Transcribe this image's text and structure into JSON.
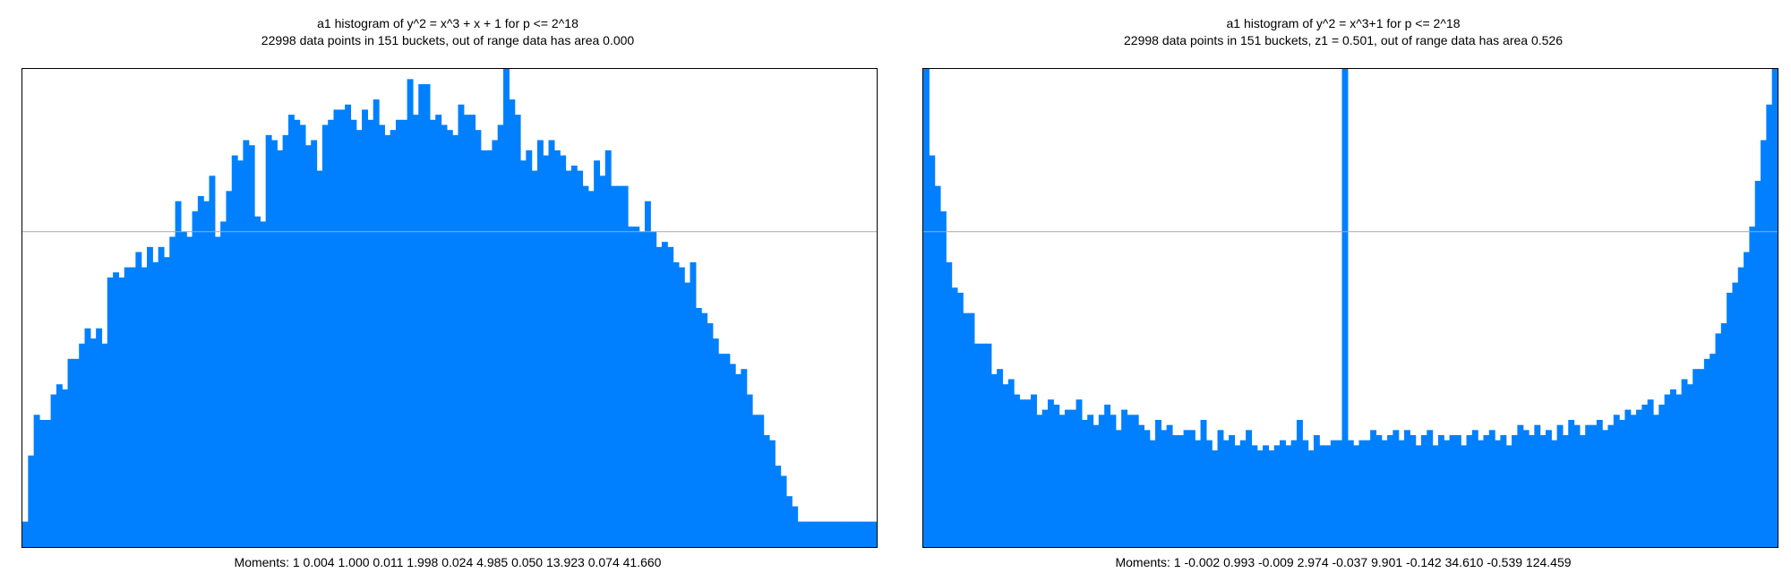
{
  "chart_data": [
    {
      "type": "bar",
      "title": "a1 histogram of y^2 = x^3 + x + 1 for p <= 2^18",
      "subtitle": "22998 data points in 151 buckets, out of range data has area 0.000",
      "moments_label": "Moments: 1   0.004   1.000   0.011   1.998   0.024   4.985   0.050   13.923   0.074   41.660",
      "bucket_count": 151,
      "ylim": [
        0,
        0.94
      ],
      "reference_line": 0.62,
      "grid": false,
      "color": "#0080ff",
      "values": [
        0.05,
        0.18,
        0.26,
        0.25,
        0.25,
        0.3,
        0.32,
        0.31,
        0.37,
        0.37,
        0.4,
        0.43,
        0.41,
        0.43,
        0.4,
        0.53,
        0.54,
        0.53,
        0.55,
        0.55,
        0.58,
        0.55,
        0.59,
        0.56,
        0.59,
        0.57,
        0.61,
        0.68,
        0.62,
        0.61,
        0.66,
        0.69,
        0.68,
        0.73,
        0.61,
        0.64,
        0.7,
        0.77,
        0.76,
        0.8,
        0.79,
        0.65,
        0.64,
        0.81,
        0.8,
        0.78,
        0.81,
        0.85,
        0.84,
        0.83,
        0.79,
        0.8,
        0.74,
        0.83,
        0.84,
        0.86,
        0.86,
        0.87,
        0.84,
        0.82,
        0.86,
        0.84,
        0.88,
        0.83,
        0.81,
        0.82,
        0.84,
        0.84,
        0.92,
        0.85,
        0.91,
        0.91,
        0.84,
        0.85,
        0.83,
        0.82,
        0.81,
        0.87,
        0.85,
        0.85,
        0.82,
        0.78,
        0.78,
        0.8,
        0.83,
        0.94,
        0.88,
        0.85,
        0.76,
        0.78,
        0.74,
        0.8,
        0.77,
        0.8,
        0.78,
        0.77,
        0.74,
        0.75,
        0.74,
        0.71,
        0.7,
        0.76,
        0.73,
        0.78,
        0.71,
        0.71,
        0.71,
        0.63,
        0.63,
        0.62,
        0.68,
        0.62,
        0.59,
        0.6,
        0.59,
        0.56,
        0.55,
        0.52,
        0.56,
        0.47,
        0.46,
        0.44,
        0.41,
        0.38,
        0.38,
        0.36,
        0.34,
        0.35,
        0.3,
        0.26,
        0.26,
        0.22,
        0.21,
        0.16,
        0.14,
        0.1,
        0.08,
        0.05,
        0.05,
        0.05,
        0.05,
        0.05,
        0.05,
        0.05,
        0.05,
        0.05,
        0.05,
        0.05,
        0.05,
        0.05,
        0.05
      ]
    },
    {
      "type": "bar",
      "title": "a1 histogram of y^2 = x^3+1 for p <= 2^18",
      "subtitle": "22998 data points in 151 buckets, z1 = 0.501, out of range data has area 0.526",
      "moments_label": "Moments: 1   -0.002   0.993   -0.009   2.974   -0.037   9.901   -0.142   34.610   -0.539   124.459",
      "bucket_count": 151,
      "ylim": [
        0,
        0.94
      ],
      "reference_line": 0.62,
      "grid": false,
      "color": "#0080ff",
      "values": [
        0.94,
        0.77,
        0.71,
        0.66,
        0.56,
        0.51,
        0.5,
        0.46,
        0.46,
        0.4,
        0.4,
        0.4,
        0.34,
        0.35,
        0.32,
        0.33,
        0.3,
        0.29,
        0.29,
        0.3,
        0.26,
        0.27,
        0.29,
        0.28,
        0.26,
        0.27,
        0.27,
        0.29,
        0.25,
        0.26,
        0.24,
        0.26,
        0.28,
        0.26,
        0.23,
        0.27,
        0.26,
        0.26,
        0.24,
        0.23,
        0.21,
        0.25,
        0.23,
        0.24,
        0.22,
        0.22,
        0.23,
        0.23,
        0.21,
        0.25,
        0.21,
        0.19,
        0.23,
        0.21,
        0.22,
        0.2,
        0.21,
        0.23,
        0.2,
        0.19,
        0.2,
        0.19,
        0.2,
        0.21,
        0.2,
        0.21,
        0.25,
        0.21,
        0.19,
        0.22,
        0.2,
        0.2,
        0.21,
        0.21,
        0.94,
        0.21,
        0.2,
        0.21,
        0.21,
        0.23,
        0.22,
        0.21,
        0.22,
        0.23,
        0.21,
        0.23,
        0.22,
        0.2,
        0.22,
        0.23,
        0.2,
        0.22,
        0.21,
        0.22,
        0.22,
        0.2,
        0.22,
        0.23,
        0.21,
        0.22,
        0.23,
        0.21,
        0.22,
        0.2,
        0.22,
        0.24,
        0.23,
        0.22,
        0.24,
        0.22,
        0.23,
        0.21,
        0.24,
        0.22,
        0.25,
        0.24,
        0.22,
        0.24,
        0.24,
        0.25,
        0.23,
        0.24,
        0.26,
        0.25,
        0.27,
        0.26,
        0.27,
        0.28,
        0.29,
        0.26,
        0.28,
        0.3,
        0.31,
        0.3,
        0.33,
        0.32,
        0.35,
        0.35,
        0.37,
        0.38,
        0.42,
        0.44,
        0.5,
        0.52,
        0.55,
        0.58,
        0.63,
        0.72,
        0.8,
        0.87,
        0.94
      ]
    }
  ]
}
